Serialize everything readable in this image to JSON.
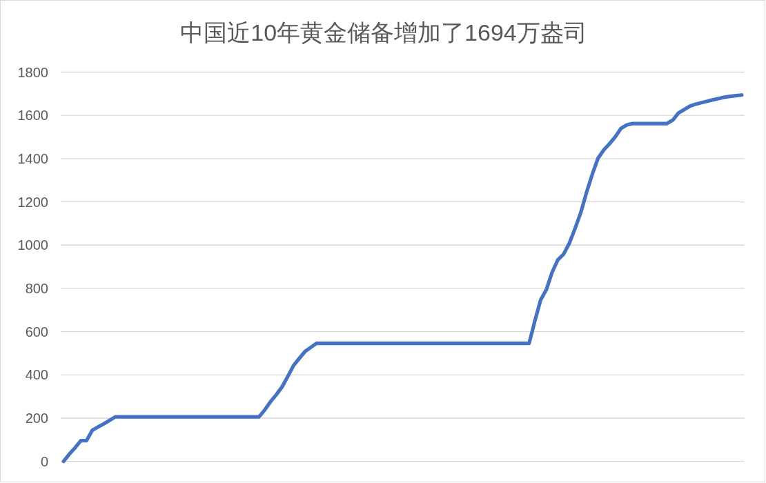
{
  "chart_data": {
    "type": "line",
    "title": "中国近10年黄金储备增加了1694万盎司",
    "categories": [
      null,
      null,
      null,
      null,
      null,
      null,
      null,
      null,
      null,
      null,
      null,
      null,
      null,
      null,
      null,
      null,
      null,
      null,
      null,
      null,
      null,
      null,
      null,
      null,
      null,
      null,
      null,
      null,
      null,
      null,
      null,
      null,
      null,
      null,
      null,
      null,
      null,
      null,
      null,
      null,
      null,
      null,
      null,
      null,
      null,
      null,
      null,
      null,
      null,
      null,
      null,
      null,
      null,
      null,
      null,
      null,
      null,
      null,
      null,
      null,
      null,
      null,
      null,
      null,
      null,
      null,
      null,
      null,
      null,
      null,
      null,
      null,
      null,
      null,
      null,
      null,
      null,
      null,
      null,
      null,
      null,
      null,
      null,
      null,
      null,
      null,
      null,
      null,
      null,
      null,
      null,
      null,
      null,
      null,
      null,
      null,
      null,
      null,
      null,
      null,
      null,
      null,
      null,
      null,
      null,
      null,
      null,
      null,
      null,
      null,
      null,
      null,
      null,
      null,
      null,
      null,
      null,
      null,
      null
    ],
    "series": [
      {
        "color": "#4472c4",
        "values": [
          0,
          34,
          63,
          96,
          96,
          144,
          159,
          174,
          190,
          206,
          206,
          206,
          206,
          206,
          206,
          206,
          206,
          206,
          206,
          206,
          206,
          206,
          206,
          206,
          206,
          206,
          206,
          206,
          206,
          206,
          206,
          206,
          206,
          206,
          206,
          238,
          276,
          308,
          344,
          392,
          443,
          476,
          508,
          527,
          546,
          546,
          546,
          546,
          546,
          546,
          546,
          546,
          546,
          546,
          546,
          546,
          546,
          546,
          546,
          546,
          546,
          546,
          546,
          546,
          546,
          546,
          546,
          546,
          546,
          546,
          546,
          546,
          546,
          546,
          546,
          546,
          546,
          546,
          546,
          546,
          546,
          546,
          649,
          746,
          794,
          874,
          932,
          958,
          1009,
          1077,
          1151,
          1244,
          1328,
          1402,
          1440,
          1469,
          1501,
          1540,
          1556,
          1562,
          1562,
          1562,
          1562,
          1562,
          1562,
          1562,
          1578,
          1611,
          1627,
          1643,
          1652,
          1659,
          1665,
          1672,
          1678,
          1684,
          1688,
          1691,
          1694
        ]
      }
    ],
    "ylim": [
      0,
      1800
    ],
    "yticks": [
      0,
      200,
      400,
      600,
      800,
      1000,
      1200,
      1400,
      1600,
      1800
    ],
    "grid": "y",
    "marker": "none",
    "line_style": "solid",
    "tick_labels": "y"
  }
}
